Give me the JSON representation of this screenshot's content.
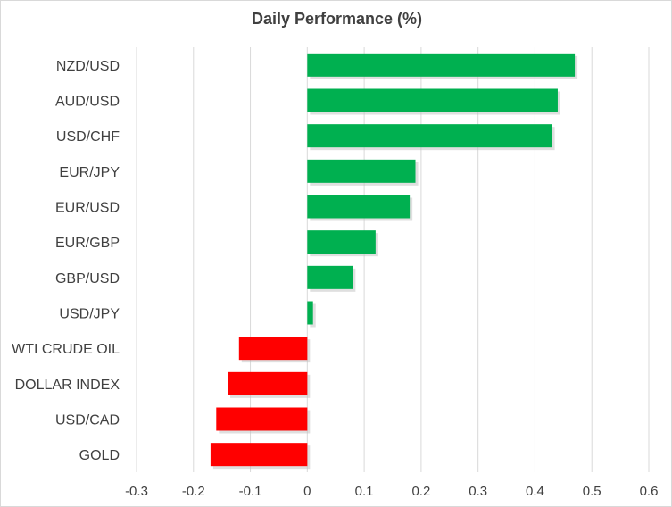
{
  "chart_data": {
    "type": "bar",
    "orientation": "horizontal",
    "title": "Daily Performance  (%)",
    "xlabel": "",
    "ylabel": "",
    "categories": [
      "NZD/USD",
      "AUD/USD",
      "USD/CHF",
      "EUR/JPY",
      "EUR/USD",
      "EUR/GBP",
      "GBP/USD",
      "USD/JPY",
      "WTI CRUDE OIL",
      "DOLLAR INDEX",
      "USD/CAD",
      "GOLD"
    ],
    "values": [
      0.47,
      0.44,
      0.43,
      0.19,
      0.18,
      0.12,
      0.08,
      0.01,
      -0.12,
      -0.14,
      -0.16,
      -0.17
    ],
    "xlim": [
      -0.3,
      0.6
    ],
    "xticks": [
      "-0.3",
      "-0.2",
      "-0.1",
      "0",
      "0.1",
      "0.2",
      "0.3",
      "0.4",
      "0.5",
      "0.6"
    ],
    "grid": "vertical",
    "legend": "none",
    "colors": {
      "positive": "#00b050",
      "negative": "#ff0000",
      "grid": "#d9d9d9",
      "text": "#404040"
    }
  }
}
